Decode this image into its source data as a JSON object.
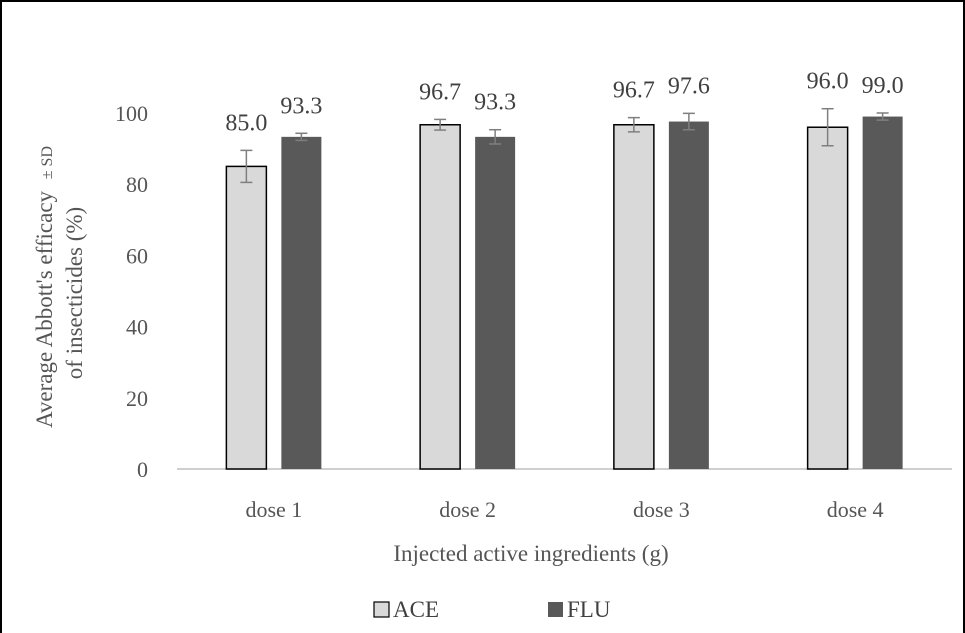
{
  "chart_data": {
    "type": "bar",
    "categories": [
      "dose 1",
      "dose 2",
      "dose 3",
      "dose 4"
    ],
    "series": [
      {
        "name": "ACE",
        "color": "#d9d9d9",
        "values": [
          85.0,
          96.7,
          96.7,
          96.0
        ],
        "errors": [
          4.5,
          1.5,
          2.0,
          5.2
        ],
        "labels": [
          "85.0",
          "96.7",
          "96.7",
          "96.0"
        ]
      },
      {
        "name": "FLU",
        "color": "#595959",
        "values": [
          93.3,
          93.3,
          97.6,
          99.0
        ],
        "errors": [
          1.0,
          2.0,
          2.3,
          1.0
        ],
        "labels": [
          "93.3",
          "93.3",
          "97.6",
          "99.0"
        ]
      }
    ],
    "title": "",
    "xlabel": "Injected active ingredients (g)",
    "ylabel_line1": "Average Abbott's efficacy",
    "ylabel_sd": "± SD",
    "ylabel_line2": "of insecticides (%)",
    "yticks": [
      "0",
      "20",
      "40",
      "60",
      "80",
      "100"
    ],
    "ylim": [
      0,
      120
    ],
    "grid": false,
    "legend_position": "bottom"
  }
}
